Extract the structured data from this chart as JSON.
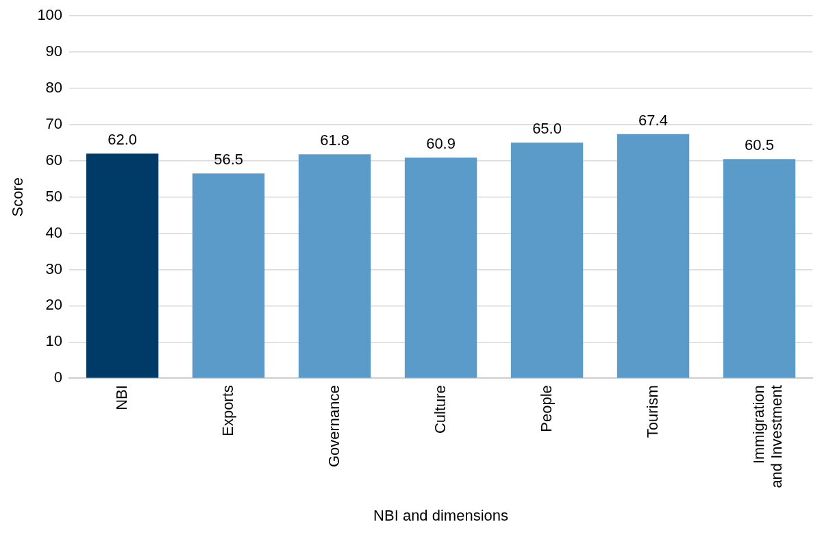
{
  "chart_data": {
    "type": "bar",
    "xlabel": "NBI and dimensions",
    "ylabel": "Score",
    "categories": [
      "NBI",
      "Exports",
      "Governance",
      "Culture",
      "People",
      "Tourism",
      "Immigration and Investment"
    ],
    "values": [
      62.0,
      56.5,
      61.8,
      60.9,
      65.0,
      67.4,
      60.5
    ],
    "colors": [
      "#003a66",
      "#5b9bc9",
      "#5b9bc9",
      "#5b9bc9",
      "#5b9bc9",
      "#5b9bc9",
      "#5b9bc9"
    ],
    "value_labels": [
      "62.0",
      "56.5",
      "61.8",
      "60.9",
      "65.0",
      "67.4",
      "60.5"
    ],
    "ylim": [
      0,
      100
    ],
    "yticks": [
      0,
      10,
      20,
      30,
      40,
      50,
      60,
      70,
      80,
      90,
      100
    ],
    "grid": "y",
    "legend": false
  }
}
